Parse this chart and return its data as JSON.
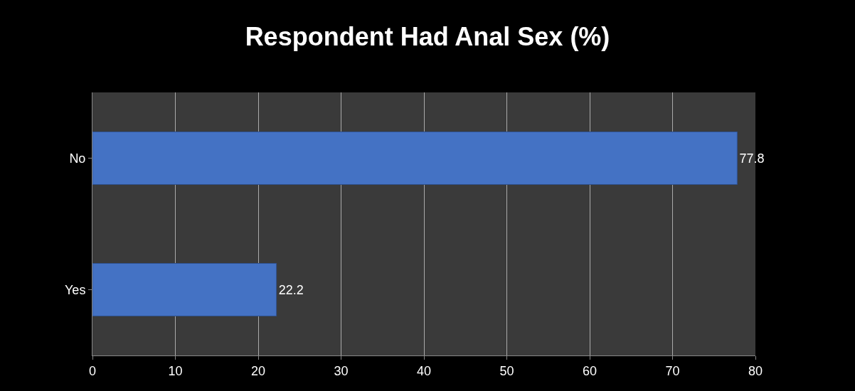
{
  "chart_data": {
    "type": "bar",
    "orientation": "horizontal",
    "title": "Respondent Had Anal Sex (%)",
    "categories": [
      "No",
      "Yes"
    ],
    "values": [
      77.8,
      22.2
    ],
    "color": "#4472c4",
    "data_labels": true,
    "xlim": [
      0,
      80
    ],
    "xticks": [
      0,
      10,
      20,
      30,
      40,
      50,
      60,
      70,
      80
    ],
    "grid": "x"
  }
}
